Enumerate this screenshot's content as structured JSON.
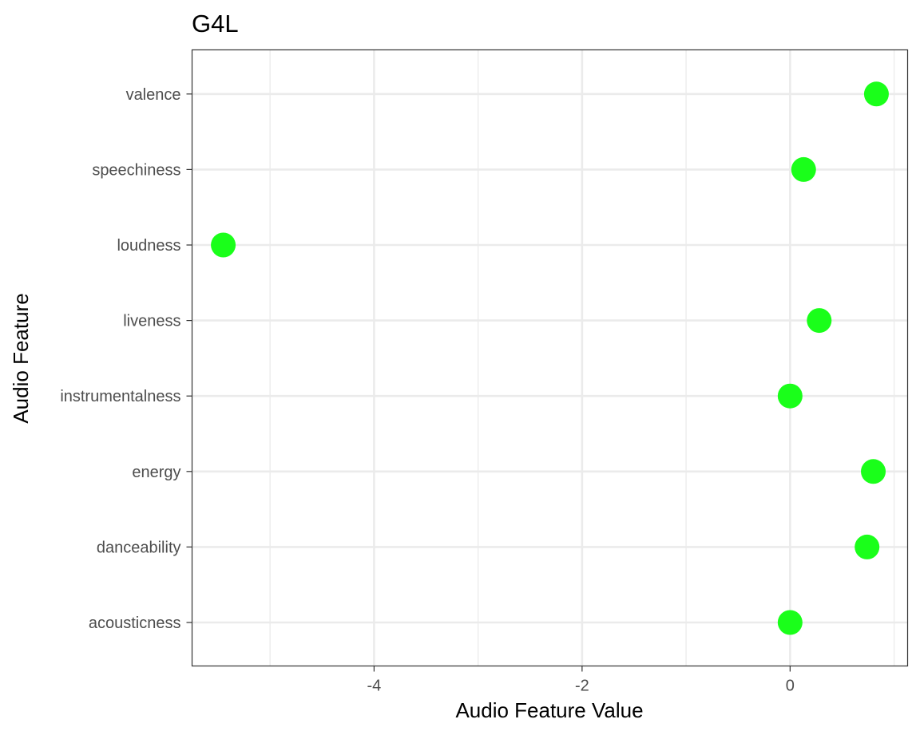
{
  "chart_data": {
    "type": "scatter",
    "title": "G4L",
    "xlabel": "Audio Feature Value",
    "ylabel": "Audio Feature",
    "categories": [
      "acousticness",
      "danceability",
      "energy",
      "instrumentalness",
      "liveness",
      "loudness",
      "speechiness",
      "valence"
    ],
    "values": [
      0.0,
      0.74,
      0.8,
      0.0,
      0.28,
      -5.45,
      0.13,
      0.83
    ],
    "xlim": [
      -5.75,
      1.13
    ],
    "x_ticks": [
      -4,
      -2,
      0
    ],
    "x_tick_labels": [
      "-4",
      "-2",
      "0"
    ],
    "grid": true,
    "point_color": "#1AFF1A",
    "legend": "none"
  }
}
